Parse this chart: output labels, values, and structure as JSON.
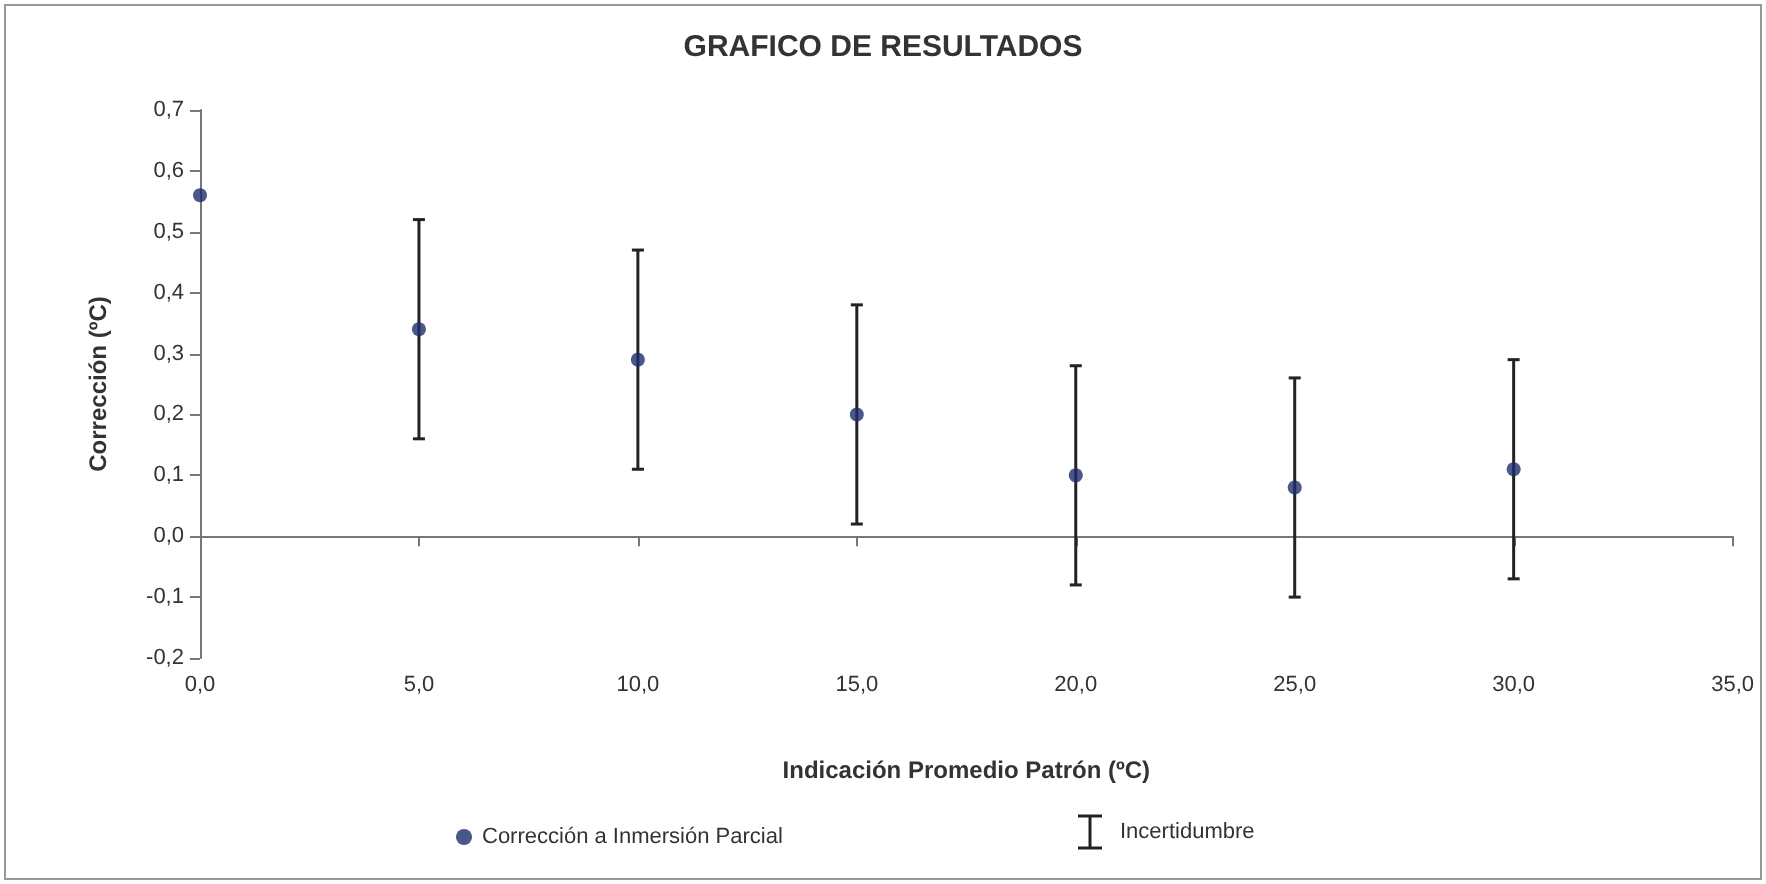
{
  "chart_data": {
    "type": "scatter",
    "title": "GRAFICO DE RESULTADOS",
    "xlabel": "Indicación Promedio Patrón (ºC)",
    "ylabel": "Corrección (ºC)",
    "x": [
      0,
      5,
      10,
      15,
      20,
      25,
      30
    ],
    "series": [
      {
        "name": "Corrección a Inmersión Parcial",
        "color": "#1f2d6b",
        "values": [
          0.56,
          0.34,
          0.29,
          0.2,
          0.1,
          0.08,
          0.11
        ],
        "errors": [
          null,
          0.18,
          0.18,
          0.18,
          0.18,
          0.18,
          0.18
        ]
      }
    ],
    "xlim": [
      0,
      35
    ],
    "xticks": [
      {
        "value": 0,
        "label": "0,0"
      },
      {
        "value": 5,
        "label": "5,0"
      },
      {
        "value": 10,
        "label": "10,0"
      },
      {
        "value": 15,
        "label": "15,0"
      },
      {
        "value": 20,
        "label": "20,0"
      },
      {
        "value": 25,
        "label": "25,0"
      },
      {
        "value": 30,
        "label": "30,0"
      },
      {
        "value": 35,
        "label": "35,0"
      }
    ],
    "ylim": [
      -0.2,
      0.7
    ],
    "yticks": [
      {
        "value": -0.2,
        "label": "-0,2"
      },
      {
        "value": -0.1,
        "label": "-0,1"
      },
      {
        "value": 0,
        "label": "0,0"
      },
      {
        "value": 0.1,
        "label": "0,1"
      },
      {
        "value": 0.2,
        "label": "0,2"
      },
      {
        "value": 0.3,
        "label": "0,3"
      },
      {
        "value": 0.4,
        "label": "0,4"
      },
      {
        "value": 0.5,
        "label": "0,5"
      },
      {
        "value": 0.6,
        "label": "0,6"
      },
      {
        "value": 0.7,
        "label": "0,7"
      }
    ],
    "annotations": [
      "Incertidumbre"
    ],
    "legend": "bottom",
    "marker": "circle"
  }
}
